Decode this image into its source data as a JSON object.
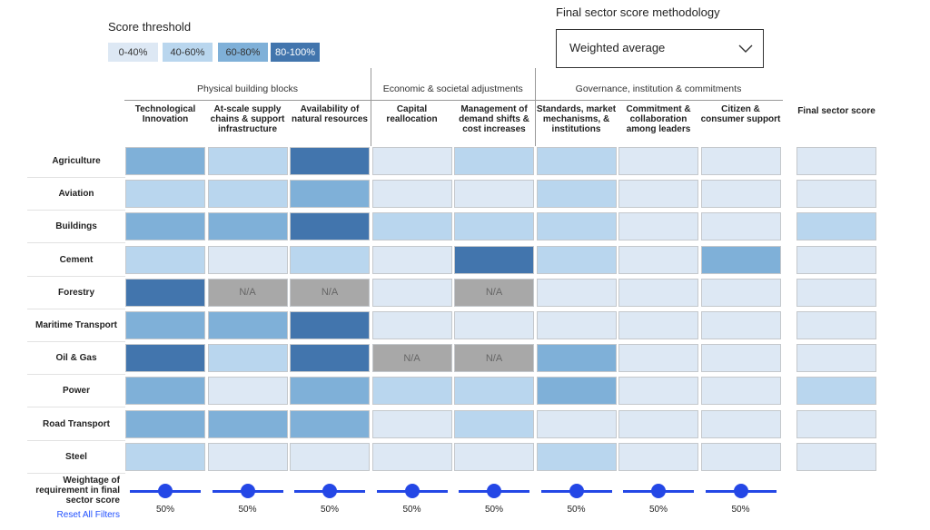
{
  "legend": {
    "title": "Score threshold",
    "thresholds": [
      {
        "label": "0-40%",
        "color": "#dde8f4"
      },
      {
        "label": "40-60%",
        "color": "#b9d6ee"
      },
      {
        "label": "60-80%",
        "color": "#7fb0d8"
      },
      {
        "label": "80-100%",
        "color": "#4275ad"
      }
    ]
  },
  "methodology": {
    "title": "Final sector score methodology",
    "selected": "Weighted average"
  },
  "groups": [
    {
      "label": "Physical building blocks",
      "span": 3
    },
    {
      "label": "Economic & societal adjustments",
      "span": 2
    },
    {
      "label": "Governance, institution & commitments",
      "span": 3
    }
  ],
  "columns": [
    "Technological Innovation",
    "At-scale supply chains & support infrastructure",
    "Availability of natural resources",
    "Capital reallocation",
    "Management of demand shifts & cost increases",
    "Standards, market mechanisms, & institutions",
    "Commitment & collaboration among leaders",
    "Citizen & consumer support"
  ],
  "final_header": "Final sector score",
  "na_label": "N/A",
  "rows": [
    {
      "label": "Agriculture",
      "scores": [
        2,
        1,
        3,
        0,
        1,
        1,
        0,
        0
      ],
      "final": 0
    },
    {
      "label": "Aviation",
      "scores": [
        1,
        1,
        2,
        0,
        0,
        1,
        0,
        0
      ],
      "final": 0
    },
    {
      "label": "Buildings",
      "scores": [
        2,
        2,
        3,
        1,
        1,
        1,
        0,
        0
      ],
      "final": 1
    },
    {
      "label": "Cement",
      "scores": [
        1,
        0,
        1,
        0,
        3,
        1,
        0,
        2
      ],
      "final": 0
    },
    {
      "label": "Forestry",
      "scores": [
        3,
        null,
        null,
        0,
        null,
        0,
        0,
        0
      ],
      "final": 0
    },
    {
      "label": "Maritime Transport",
      "scores": [
        2,
        2,
        3,
        0,
        0,
        0,
        0,
        0
      ],
      "final": 0
    },
    {
      "label": "Oil & Gas",
      "scores": [
        3,
        1,
        3,
        null,
        null,
        2,
        0,
        0
      ],
      "final": 0
    },
    {
      "label": "Power",
      "scores": [
        2,
        0,
        2,
        1,
        1,
        2,
        0,
        0
      ],
      "final": 1
    },
    {
      "label": "Road Transport",
      "scores": [
        2,
        2,
        2,
        0,
        1,
        0,
        0,
        0
      ],
      "final": 0
    },
    {
      "label": "Steel",
      "scores": [
        1,
        0,
        0,
        0,
        0,
        1,
        0,
        0
      ],
      "final": 0
    }
  ],
  "weightage": {
    "label": "Weightage of requirement in final sector score",
    "weights": [
      {
        "value": 50,
        "label": "50%"
      },
      {
        "value": 50,
        "label": "50%"
      },
      {
        "value": 50,
        "label": "50%"
      },
      {
        "value": 50,
        "label": "50%"
      },
      {
        "value": 50,
        "label": "50%"
      },
      {
        "value": 50,
        "label": "50%"
      },
      {
        "value": 50,
        "label": "50%"
      },
      {
        "value": 50,
        "label": "50%"
      }
    ]
  },
  "reset": "Reset All Filters"
}
